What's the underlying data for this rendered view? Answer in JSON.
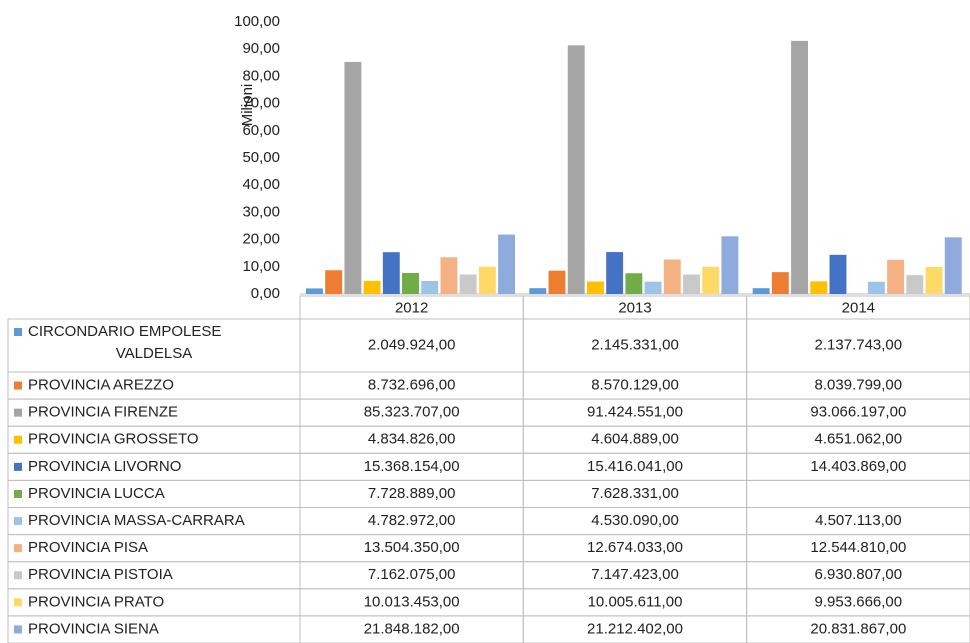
{
  "chart_data": {
    "type": "bar",
    "y_label": "Milioni",
    "categories": [
      "2012",
      "2013",
      "2014"
    ],
    "ylim": [
      0,
      100
    ],
    "yticks": [
      {
        "value": 0,
        "label": "0,00"
      },
      {
        "value": 10,
        "label": "10,00"
      },
      {
        "value": 20,
        "label": "20,00"
      },
      {
        "value": 30,
        "label": "30,00"
      },
      {
        "value": 40,
        "label": "40,00"
      },
      {
        "value": 50,
        "label": "50,00"
      },
      {
        "value": 60,
        "label": "60,00"
      },
      {
        "value": 70,
        "label": "70,00"
      },
      {
        "value": 80,
        "label": "80,00"
      },
      {
        "value": 90,
        "label": "90,00"
      },
      {
        "value": 100,
        "label": "100,00"
      }
    ],
    "series": [
      {
        "name": "CIRCONDARIO EMPOLESE VALDELSA",
        "color": "#5b9bd5",
        "values": [
          2.049924,
          2.145331,
          2.137743
        ],
        "value_labels": [
          "2.049.924,00",
          "2.145.331,00",
          "2.137.743,00"
        ]
      },
      {
        "name": "PROVINCIA AREZZO",
        "color": "#ed7d31",
        "values": [
          8.732696,
          8.570129,
          8.039799
        ],
        "value_labels": [
          "8.732.696,00",
          "8.570.129,00",
          "8.039.799,00"
        ]
      },
      {
        "name": "PROVINCIA FIRENZE",
        "color": "#a5a5a5",
        "values": [
          85.323707,
          91.424551,
          93.066197
        ],
        "value_labels": [
          "85.323.707,00",
          "91.424.551,00",
          "93.066.197,00"
        ]
      },
      {
        "name": "PROVINCIA GROSSETO",
        "color": "#ffc000",
        "values": [
          4.834826,
          4.604889,
          4.651062
        ],
        "value_labels": [
          "4.834.826,00",
          "4.604.889,00",
          "4.651.062,00"
        ]
      },
      {
        "name": "PROVINCIA LIVORNO",
        "color": "#4472c4",
        "values": [
          15.368154,
          15.416041,
          14.403869
        ],
        "value_labels": [
          "15.368.154,00",
          "15.416.041,00",
          "14.403.869,00"
        ]
      },
      {
        "name": "PROVINCIA LUCCA",
        "color": "#70ad47",
        "values": [
          7.728889,
          7.628331,
          null
        ],
        "value_labels": [
          "7.728.889,00",
          "7.628.331,00",
          null
        ]
      },
      {
        "name": "PROVINCIA MASSA-CARRARA",
        "color": "#9dc3e6",
        "values": [
          4.782972,
          4.53009,
          4.507113
        ],
        "value_labels": [
          "4.782.972,00",
          "4.530.090,00",
          "4.507.113,00"
        ]
      },
      {
        "name": "PROVINCIA PISA",
        "color": "#f4b183",
        "values": [
          13.50435,
          12.674033,
          12.54481
        ],
        "value_labels": [
          "13.504.350,00",
          "12.674.033,00",
          "12.544.810,00"
        ]
      },
      {
        "name": "PROVINCIA PISTOIA",
        "color": "#c9c9c9",
        "values": [
          7.162075,
          7.147423,
          6.930807
        ],
        "value_labels": [
          "7.162.075,00",
          "7.147.423,00",
          "6.930.807,00"
        ]
      },
      {
        "name": "PROVINCIA PRATO",
        "color": "#ffd966",
        "values": [
          10.013453,
          10.005611,
          9.953666
        ],
        "value_labels": [
          "10.013.453,00",
          "10.005.611,00",
          "9.953.666,00"
        ]
      },
      {
        "name": "PROVINCIA SIENA",
        "color": "#8faadc",
        "values": [
          21.848182,
          21.212402,
          20.831867
        ],
        "value_labels": [
          "21.848.182,00",
          "21.212.402,00",
          "20.831.867,00"
        ]
      }
    ]
  }
}
